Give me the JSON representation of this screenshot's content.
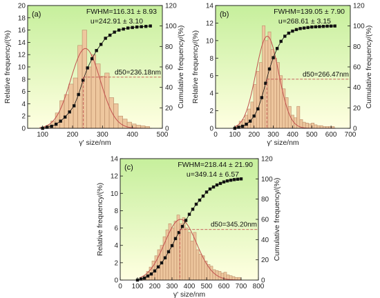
{
  "colors": {
    "bar_fill": "#eec79e",
    "bar_stroke": "#b98a66",
    "fit_curve": "#c0504d",
    "cumulative": "#111111",
    "bg_top": "#c6ef9c",
    "bg_bottom": "#ffffe1"
  },
  "chart_data": [
    {
      "type": "bar",
      "panel_label": "(a)",
      "fwhm": "FWHM=116.31 ± 8.93",
      "u": "u=242.91 ± 3.10",
      "d50_label": "d50=236.18nm",
      "xlabel": "γ' size/nm",
      "ylabel_left": "Relative frequency/(%)",
      "ylabel_right": "Cumulative frequency/(%)",
      "xlim": [
        50,
        500
      ],
      "ylim_left": [
        0,
        20
      ],
      "ylim_right": [
        0,
        120
      ],
      "x_ticks": [
        100,
        200,
        300,
        400,
        500
      ],
      "y_left_ticks": [
        0,
        2,
        4,
        6,
        8,
        10,
        12,
        14,
        16,
        18,
        20
      ],
      "y_right_ticks": [
        0,
        20,
        40,
        60,
        80,
        100,
        120
      ],
      "bar_width": 15,
      "bars": {
        "x": [
          105,
          120,
          135,
          150,
          165,
          180,
          195,
          210,
          225,
          240,
          255,
          270,
          285,
          300,
          315,
          330,
          345,
          360,
          375,
          390,
          405,
          420,
          435,
          450
        ],
        "values": [
          0.2,
          0.5,
          1.2,
          2.5,
          4.5,
          5.5,
          7.2,
          8.2,
          13.5,
          16.0,
          10.0,
          12.0,
          10.5,
          8.5,
          9.0,
          5.0,
          4.0,
          2.0,
          1.5,
          1.0,
          0.7,
          0.5,
          0.4,
          0.3
        ]
      },
      "fit": {
        "center": 242.91,
        "fwhm": 116.31,
        "peak": 13.0
      },
      "cumulative": {
        "x": [
          100,
          115,
          130,
          145,
          160,
          175,
          190,
          205,
          220,
          235,
          250,
          265,
          280,
          295,
          310,
          325,
          340,
          355,
          370,
          385,
          400,
          415,
          430,
          445,
          460
        ],
        "values": [
          0,
          1,
          2,
          4,
          7,
          11,
          16,
          22,
          33,
          47,
          59,
          68,
          76,
          82,
          88,
          91,
          94,
          96,
          97,
          98,
          98.5,
          99,
          99.3,
          99.6,
          100
        ]
      },
      "d50": {
        "x": 236.18,
        "cum": 50
      }
    },
    {
      "type": "bar",
      "panel_label": "(b)",
      "fwhm": "FWHM=139.05 ± 7.90",
      "u": "u=268.61 ± 3.15",
      "d50_label": "d50=266.47nm",
      "xlabel": "γ' size/nm",
      "ylabel_left": "Relative frequency/(%)",
      "ylabel_right": "Cumulative frequency/(%)",
      "xlim": [
        0,
        700
      ],
      "ylim_left": [
        0,
        14
      ],
      "ylim_right": [
        0,
        120
      ],
      "x_ticks": [
        0,
        100,
        200,
        300,
        400,
        500,
        600,
        700
      ],
      "y_left_ticks": [
        0,
        2,
        4,
        6,
        8,
        10,
        12,
        14
      ],
      "y_right_ticks": [
        0,
        20,
        40,
        60,
        80,
        100,
        120
      ],
      "bar_width": 15,
      "bars": {
        "x": [
          115,
          130,
          145,
          160,
          175,
          190,
          205,
          220,
          235,
          250,
          265,
          280,
          295,
          310,
          325,
          340,
          355,
          370,
          385,
          400,
          415,
          430,
          445,
          460,
          475,
          490,
          505,
          520,
          535,
          550,
          565,
          580,
          595,
          610
        ],
        "values": [
          0.3,
          0.8,
          1.0,
          1.5,
          2.2,
          3.0,
          5.0,
          6.5,
          7.5,
          11.7,
          10.0,
          11.0,
          9.0,
          8.0,
          7.5,
          6.0,
          4.5,
          3.5,
          2.5,
          1.5,
          1.2,
          2.5,
          1.0,
          0.7,
          0.6,
          0.5,
          0.6,
          0.4,
          0.3,
          0.3,
          0.2,
          0.2,
          0.2,
          0.2
        ]
      },
      "fit": {
        "center": 268.61,
        "fwhm": 139.05,
        "peak": 10.5
      },
      "cumulative": {
        "x": [
          100,
          120,
          140,
          160,
          180,
          200,
          220,
          240,
          260,
          280,
          300,
          320,
          340,
          360,
          380,
          400,
          420,
          440,
          460,
          480,
          500,
          520,
          540,
          560,
          580,
          600,
          620
        ],
        "values": [
          0,
          1,
          2,
          4,
          7,
          12,
          19,
          30,
          44,
          58,
          69,
          78,
          85,
          90,
          93,
          95,
          96.5,
          97.5,
          98,
          98.5,
          99,
          99.2,
          99.4,
          99.6,
          99.8,
          99.9,
          100
        ]
      },
      "d50": {
        "x": 266.47,
        "cum": 48
      }
    },
    {
      "type": "bar",
      "panel_label": "(c)",
      "fwhm": "FWHM=218.44 ± 21.90",
      "u": "u=349.14 ± 6.57",
      "d50_label": "d50=345.20nm",
      "xlabel": "γ' size/nm",
      "ylabel_left": "Relative frequency/(%)",
      "ylabel_right": "Cumulative frequency/(%)",
      "xlim": [
        0,
        800
      ],
      "ylim_left": [
        0,
        14
      ],
      "ylim_right": [
        0,
        120
      ],
      "x_ticks": [
        0,
        100,
        200,
        300,
        400,
        500,
        600,
        700,
        800
      ],
      "y_left_ticks": [
        0,
        2,
        4,
        6,
        8,
        10,
        12,
        14
      ],
      "y_right_ticks": [
        0,
        20,
        40,
        60,
        80,
        100,
        120
      ],
      "bar_width": 16,
      "bars": {
        "x": [
          128,
          144,
          160,
          176,
          192,
          208,
          224,
          240,
          256,
          272,
          288,
          304,
          320,
          336,
          352,
          368,
          384,
          400,
          416,
          432,
          448,
          464,
          480,
          496,
          512,
          528,
          544,
          560,
          576,
          592,
          608,
          624,
          640,
          656,
          672,
          688
        ],
        "values": [
          0.2,
          0.5,
          1.0,
          1.5,
          2.2,
          2.8,
          3.5,
          4.0,
          5.0,
          5.8,
          6.5,
          6.0,
          6.8,
          7.5,
          6.5,
          7.2,
          6.0,
          5.5,
          4.5,
          5.5,
          3.5,
          3.0,
          2.8,
          2.2,
          1.8,
          1.6,
          1.2,
          1.1,
          1.0,
          0.8,
          0.9,
          0.6,
          0.5,
          0.4,
          0.3,
          0.3
        ]
      },
      "fit": {
        "center": 349.14,
        "fwhm": 218.44,
        "peak": 7.0
      },
      "cumulative": {
        "x": [
          100,
          120,
          140,
          160,
          180,
          200,
          220,
          240,
          260,
          280,
          300,
          320,
          340,
          360,
          380,
          400,
          420,
          440,
          460,
          480,
          500,
          520,
          540,
          560,
          580,
          600,
          620,
          640,
          660,
          680,
          700
        ],
        "values": [
          0,
          1,
          2,
          4,
          6,
          9,
          13,
          17,
          22,
          28,
          34,
          41,
          47,
          53,
          59,
          65,
          70,
          75,
          79,
          83,
          87,
          90,
          92,
          94,
          95.5,
          97,
          98,
          98.7,
          99.3,
          99.7,
          100
        ]
      },
      "d50": {
        "x": 345.2,
        "cum": 50
      }
    }
  ]
}
